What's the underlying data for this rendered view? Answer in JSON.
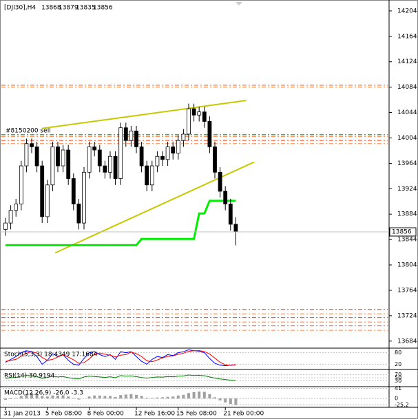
{
  "chart_data": {
    "type": "candlestick",
    "symbol": "[DJI30],H4",
    "categories": [
      "31 Jan 2013",
      null,
      null,
      null,
      null,
      null,
      null,
      null,
      "5 Feb 08:00",
      null,
      null,
      null,
      null,
      null,
      null,
      null,
      "8 Feb 00:00",
      null,
      null,
      null,
      null,
      null,
      null,
      null,
      null,
      "12 Feb 16:00",
      null,
      null,
      null,
      null,
      null,
      null,
      null,
      "15 Feb 08:00",
      null,
      null,
      null,
      null,
      null,
      null,
      null,
      null,
      "21 Feb 00:00",
      null,
      null
    ],
    "open": [
      13860,
      13870,
      13890,
      13900,
      13960,
      13995,
      13990,
      13960,
      13880,
      13930,
      13990,
      13960,
      13985,
      13940,
      13900,
      13870,
      13950,
      13990,
      13985,
      13960,
      13950,
      13975,
      13940,
      14020,
      14000,
      14015,
      13990,
      13960,
      13930,
      13960,
      13975,
      13970,
      13990,
      13980,
      14000,
      14010,
      14050,
      14040,
      14045,
      14030,
      13990,
      13950,
      13920,
      13900,
      13868
    ],
    "high": [
      13878,
      13898,
      13908,
      13968,
      14003,
      14003,
      13998,
      13968,
      13938,
      13998,
      13998,
      13993,
      13993,
      13948,
      13908,
      13958,
      13998,
      13998,
      13993,
      13968,
      13983,
      13983,
      14028,
      14028,
      14023,
      14023,
      13998,
      13968,
      13968,
      13983,
      13983,
      13998,
      13998,
      14008,
      14018,
      14058,
      14058,
      14053,
      14053,
      14038,
      13998,
      13958,
      13928,
      13908,
      13879
    ],
    "low": [
      13850,
      13860,
      13880,
      13890,
      13950,
      13980,
      13950,
      13870,
      13870,
      13920,
      13950,
      13950,
      13930,
      13890,
      13860,
      13860,
      13940,
      13975,
      13950,
      13940,
      13940,
      13930,
      13930,
      13990,
      13990,
      13980,
      13950,
      13920,
      13920,
      13950,
      13960,
      13960,
      13970,
      13970,
      13990,
      14000,
      14030,
      14030,
      14020,
      13980,
      13940,
      13910,
      13890,
      13858,
      13835
    ],
    "close": [
      13870,
      13890,
      13900,
      13960,
      13995,
      13990,
      13960,
      13880,
      13930,
      13990,
      13960,
      13985,
      13940,
      13900,
      13870,
      13950,
      13990,
      13985,
      13960,
      13950,
      13975,
      13940,
      14020,
      14000,
      14015,
      13990,
      13960,
      13930,
      13960,
      13975,
      13970,
      13990,
      13980,
      14000,
      14010,
      14050,
      14040,
      14045,
      14030,
      13990,
      13950,
      13920,
      13900,
      13868,
      13856
    ],
    "ylim": [
      13674,
      14218
    ],
    "yticks": [
      14204,
      14164,
      14124,
      14084,
      14044,
      14004,
      13964,
      13924,
      13884,
      13844,
      13804,
      13764,
      13724,
      13684
    ],
    "up_color": "#ffffff",
    "down_color": "#000000",
    "stop_line": {
      "color": "#00ee00",
      "values": [
        13835,
        13835,
        13835,
        13835,
        13835,
        13835,
        13835,
        13835,
        13835,
        13835,
        13835,
        13835,
        13835,
        13835,
        13835,
        13835,
        13835,
        13835,
        13835,
        13835,
        13835,
        13835,
        13835,
        13835,
        13835,
        13835,
        13845,
        13845,
        13845,
        13845,
        13845,
        13845,
        13845,
        13845,
        13845,
        13845,
        13845,
        13885,
        13885,
        13905,
        13905,
        13905,
        13905,
        13905,
        13905
      ]
    },
    "trendlines": [
      {
        "color": "#c8c800",
        "x": [
          7,
          46
        ],
        "y": [
          14019,
          14063
        ]
      },
      {
        "color": "#c8c800",
        "x": [
          9.5,
          47.5
        ],
        "y": [
          13823,
          13966
        ]
      }
    ],
    "levels": [
      {
        "value": 14087,
        "color": "#ff4000"
      },
      {
        "value": 14084,
        "color": "#ff8040"
      },
      {
        "value": 14009,
        "color": "#006400",
        "label": "#8150200 sell"
      },
      {
        "value": 14006,
        "color": "#ff8040"
      },
      {
        "value": 14000,
        "color": "#ff4000"
      },
      {
        "value": 13995,
        "color": "#ff8040"
      },
      {
        "value": 13734,
        "color": "#ff4000"
      },
      {
        "value": 13727,
        "color": "#ff8040"
      },
      {
        "value": 13721,
        "color": "#ff4000"
      },
      {
        "value": 13714,
        "color": "#ff8040"
      },
      {
        "value": 13708,
        "color": "#ff4000"
      },
      {
        "value": 13701,
        "color": "#ff8040"
      }
    ],
    "panels": [
      {
        "label": "Stoch(5,3,3) 18.4349 17.1684",
        "ylim": [
          0,
          100
        ],
        "yticks": [
          80,
          20
        ],
        "series": [
          {
            "style": "line",
            "color": "#0000ff",
            "values": [
              30,
              45,
              60,
              80,
              90,
              85,
              60,
              20,
              40,
              75,
              60,
              70,
              40,
              20,
              15,
              50,
              80,
              85,
              70,
              60,
              70,
              45,
              85,
              80,
              85,
              60,
              35,
              20,
              45,
              60,
              55,
              70,
              65,
              80,
              85,
              95,
              90,
              88,
              80,
              50,
              25,
              15,
              12,
              15,
              18
            ]
          },
          {
            "style": "line",
            "color": "#ff0000",
            "values": [
              35,
              40,
              45,
              62,
              77,
              85,
              78,
              55,
              40,
              45,
              58,
              68,
              57,
              43,
              25,
              28,
              48,
              72,
              78,
              72,
              67,
              58,
              67,
              70,
              83,
              75,
              60,
              38,
              33,
              42,
              53,
              60,
              63,
              72,
              77,
              87,
              90,
              91,
              86,
              73,
              52,
              30,
              17,
              14,
              17
            ]
          }
        ]
      },
      {
        "label": "RSI(14) 30.9194",
        "ylim": [
          0,
          100
        ],
        "yticks": [
          70,
          50,
          30
        ],
        "series": [
          {
            "style": "line",
            "color": "#008000",
            "values": [
              45,
              50,
              52,
              60,
              65,
              64,
              58,
              45,
              52,
              60,
              55,
              58,
              50,
              45,
              42,
              55,
              60,
              58,
              55,
              52,
              56,
              50,
              64,
              60,
              62,
              57,
              52,
              47,
              52,
              55,
              54,
              58,
              56,
              60,
              62,
              68,
              65,
              66,
              63,
              55,
              47,
              42,
              38,
              34,
              31
            ]
          }
        ]
      },
      {
        "label": "MACD(12,26,9) -26.0 -3.3",
        "ylim": [
          -30,
          45
        ],
        "yticks": [
          41,
          0,
          -25.2
        ],
        "series": [
          {
            "style": "histogram",
            "color": "#a0a0a0",
            "values": [
              -5,
              -2,
              2,
              10,
              18,
              22,
              20,
              10,
              8,
              12,
              12,
              13,
              8,
              2,
              -4,
              0,
              8,
              12,
              12,
              10,
              10,
              6,
              14,
              16,
              18,
              15,
              10,
              3,
              2,
              4,
              5,
              7,
              8,
              12,
              15,
              22,
              26,
              28,
              27,
              18,
              5,
              -8,
              -16,
              -22,
              -26
            ]
          }
        ]
      }
    ]
  }
}
